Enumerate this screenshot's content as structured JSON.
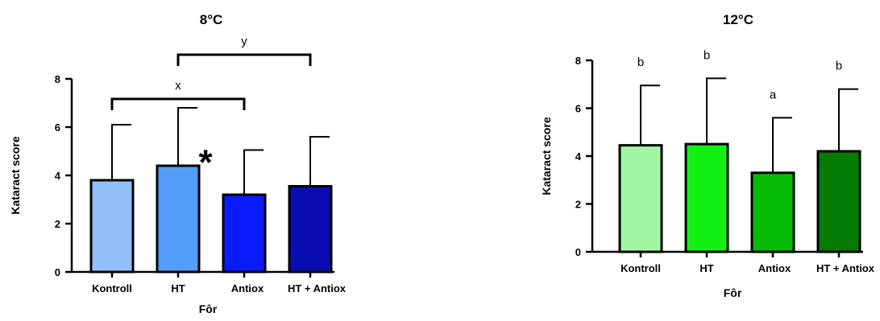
{
  "chart_data": [
    {
      "type": "bar",
      "title": "8°C",
      "xlabel": "Fôr",
      "ylabel": "Kataract score",
      "ylim": [
        0,
        8
      ],
      "yticks": [
        0,
        2,
        4,
        6,
        8
      ],
      "yticks_text": [
        "0",
        "2",
        "4",
        "6",
        "8"
      ],
      "categories": [
        "Kontroll",
        "HT",
        "Antiox",
        "HT + Antiox"
      ],
      "values": [
        3.8,
        4.4,
        3.2,
        3.55
      ],
      "errors": [
        2.3,
        2.4,
        1.85,
        2.05
      ],
      "colors": [
        "#92c0f8",
        "#559dfa",
        "#0a1cfb",
        "#0a0eb3"
      ],
      "bar_annotations": [
        "",
        "",
        "*",
        ""
      ],
      "brackets": [
        {
          "from": 0,
          "to": 2,
          "label": "x"
        },
        {
          "from": 1,
          "to": 3,
          "label": "y"
        }
      ],
      "grid": false,
      "error_bars": "upper"
    },
    {
      "type": "bar",
      "title": "12°C",
      "xlabel": "Fôr",
      "ylabel": "Kataract score",
      "ylim": [
        0,
        8
      ],
      "yticks": [
        0,
        2,
        4,
        6,
        8
      ],
      "yticks_text": [
        "0",
        "2",
        "4",
        "6",
        "8"
      ],
      "categories": [
        "Kontroll",
        "HT",
        "Antiox",
        "HT + Antiox"
      ],
      "values": [
        4.45,
        4.5,
        3.3,
        4.2
      ],
      "errors": [
        2.5,
        2.75,
        2.3,
        2.6
      ],
      "colors": [
        "#a3f7a3",
        "#14f014",
        "#07bb07",
        "#067b06"
      ],
      "bar_annotations": [
        "b",
        "b",
        "a",
        "b"
      ],
      "brackets": [],
      "grid": false,
      "error_bars": "upper"
    }
  ]
}
